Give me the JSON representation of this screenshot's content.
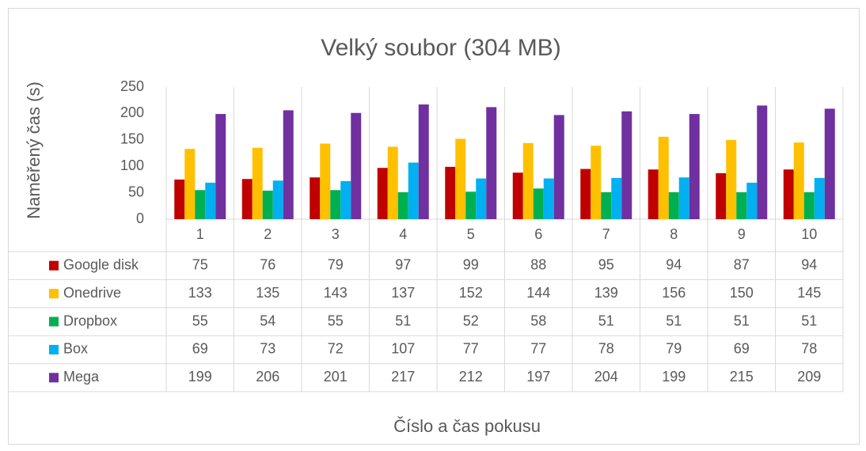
{
  "chart_data": {
    "type": "bar",
    "title": "Velký soubor (304 MB)",
    "y_label": "Naměřený čas (s)",
    "x_label": "Číslo a čas pokusu",
    "categories": [
      "1",
      "2",
      "3",
      "4",
      "5",
      "6",
      "7",
      "8",
      "9",
      "10"
    ],
    "series": [
      {
        "name": "Google disk",
        "color": "#c00000",
        "values": [
          75,
          76,
          79,
          97,
          99,
          88,
          95,
          94,
          87,
          94
        ]
      },
      {
        "name": "Onedrive",
        "color": "#ffc000",
        "values": [
          133,
          135,
          143,
          137,
          152,
          144,
          139,
          156,
          150,
          145
        ]
      },
      {
        "name": "Dropbox",
        "color": "#00b050",
        "values": [
          55,
          54,
          55,
          51,
          52,
          58,
          51,
          51,
          51,
          51
        ]
      },
      {
        "name": "Box",
        "color": "#00b0f0",
        "values": [
          69,
          73,
          72,
          107,
          77,
          77,
          78,
          79,
          69,
          78
        ]
      },
      {
        "name": "Mega",
        "color": "#7030a0",
        "values": [
          199,
          206,
          201,
          217,
          212,
          197,
          204,
          199,
          215,
          209
        ]
      }
    ],
    "ylim": [
      0,
      250
    ],
    "yticks": [
      0,
      50,
      100,
      150,
      200,
      250
    ],
    "grid": false,
    "data_table": true
  }
}
